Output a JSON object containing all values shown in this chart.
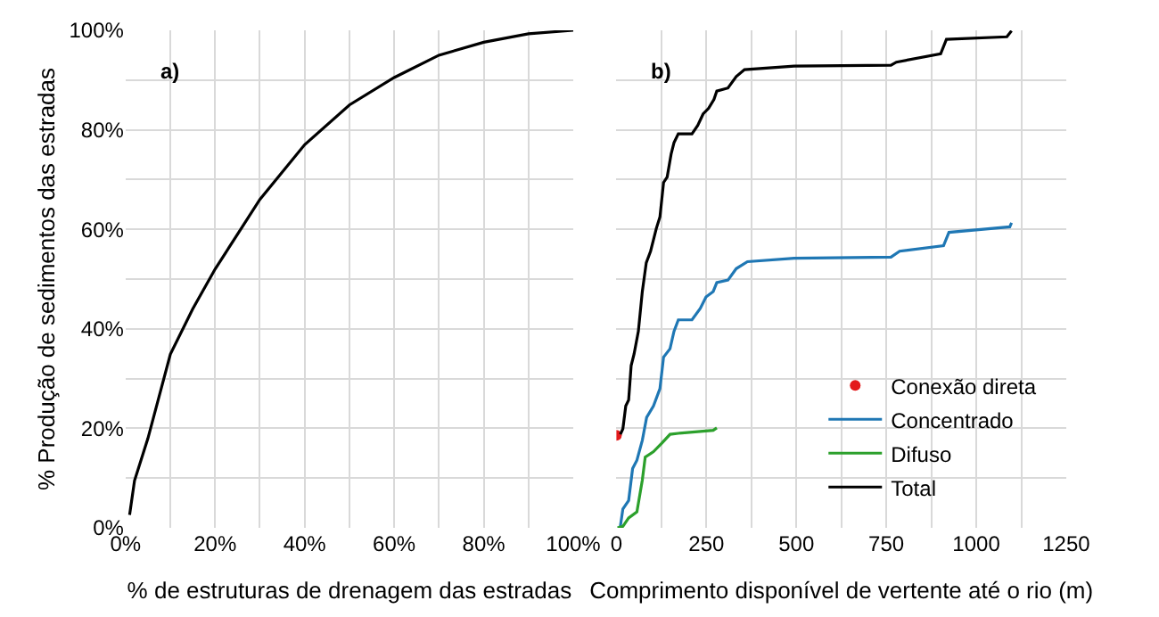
{
  "chart_data": [
    {
      "type": "line",
      "xlabel": "% de estruturas de drenagem das estradas",
      "ylabel": "% Produção de sedimentos das estradas",
      "annotations": [
        "a)"
      ],
      "x": [
        0.9,
        2,
        5,
        10,
        15,
        20,
        30,
        40,
        50,
        60,
        70,
        80,
        90,
        100
      ],
      "series": [
        {
          "color": "#000000",
          "values": [
            2.6,
            9.5,
            18,
            34.9,
            44,
            52,
            66,
            77,
            85,
            90.5,
            95,
            97.6,
            99.3,
            100
          ]
        }
      ],
      "xlim": [
        0,
        100
      ],
      "ylim": [
        0,
        100
      ],
      "xticks": [
        {
          "value": 0,
          "label": "0%"
        },
        {
          "value": 10,
          "label": null
        },
        {
          "value": 20,
          "label": "20%"
        },
        {
          "value": 30,
          "label": null
        },
        {
          "value": 40,
          "label": "40%"
        },
        {
          "value": 50,
          "label": null
        },
        {
          "value": 60,
          "label": "60%"
        },
        {
          "value": 70,
          "label": null
        },
        {
          "value": 80,
          "label": "80%"
        },
        {
          "value": 90,
          "label": null
        },
        {
          "value": 100,
          "label": "100%"
        }
      ],
      "yticks": [
        {
          "value": 0,
          "label": "0%"
        },
        {
          "value": 10,
          "label": null
        },
        {
          "value": 20,
          "label": "20%"
        },
        {
          "value": 30,
          "label": null
        },
        {
          "value": 40,
          "label": "40%"
        },
        {
          "value": 50,
          "label": null
        },
        {
          "value": 60,
          "label": "60%"
        },
        {
          "value": 70,
          "label": null
        },
        {
          "value": 80,
          "label": "80%"
        },
        {
          "value": 90,
          "label": null
        },
        {
          "value": 100,
          "label": "100%"
        }
      ],
      "grid": true,
      "legend": false
    },
    {
      "type": "line",
      "xlabel": "Comprimento disponível de vertente até o rio (m)",
      "annotations": [
        "b)"
      ],
      "series": [
        {
          "name": "Conexão direta",
          "type": "scatter",
          "marker": "circle",
          "color": "#e31a1c",
          "x": [
            0
          ],
          "values": [
            18.6
          ]
        },
        {
          "name": "Concentrado",
          "color": "#1f77b4",
          "x": [
            11,
            18,
            34,
            45,
            57,
            72,
            84,
            103,
            121,
            131,
            149,
            160,
            172,
            210,
            233,
            249,
            269,
            279,
            310,
            333,
            364,
            494,
            763,
            787,
            909,
            924,
            1093,
            1098
          ],
          "values": [
            0.3,
            3.8,
            5.5,
            11.9,
            13.6,
            17.6,
            22.2,
            24.5,
            28,
            34.3,
            36,
            39.5,
            41.8,
            41.8,
            44.1,
            46.4,
            47.5,
            49.3,
            49.8,
            52.1,
            53.5,
            54.2,
            54.4,
            55.6,
            56.7,
            59.4,
            60.5,
            61.3
          ]
        },
        {
          "name": "Difuso",
          "color": "#2ca02c",
          "x": [
            3,
            18,
            34,
            57,
            72,
            80,
            103,
            126,
            149,
            172,
            269,
            279
          ],
          "values": [
            0,
            0.3,
            2,
            3.2,
            9.6,
            14.2,
            15.3,
            17,
            18.8,
            19,
            19.6,
            20.1
          ]
        },
        {
          "name": "Total",
          "color": "#000000",
          "x": [
            11,
            18,
            26,
            34,
            41,
            49,
            61,
            72,
            83,
            95,
            111,
            121,
            131,
            141,
            152,
            160,
            172,
            210,
            226,
            241,
            256,
            271,
            279,
            310,
            333,
            356,
            494,
            763,
            778,
            901,
            917,
            1085,
            1098
          ],
          "values": [
            18.8,
            19.9,
            24.5,
            25.7,
            32.6,
            34.9,
            39.5,
            47.5,
            53.3,
            55.6,
            60.2,
            62.5,
            69.4,
            70.5,
            75.1,
            77.4,
            79.2,
            79.2,
            80.9,
            83.2,
            84.3,
            86.1,
            87.8,
            88.4,
            90.7,
            92.1,
            92.8,
            93.0,
            93.6,
            95.3,
            98.2,
            98.7,
            99.9
          ]
        }
      ],
      "xlim": [
        0,
        1250
      ],
      "ylim": [
        0,
        100
      ],
      "xticks": [
        0,
        {
          "value": 125,
          "label": null
        },
        250,
        {
          "value": 375,
          "label": null
        },
        500,
        {
          "value": 625,
          "label": null
        },
        750,
        {
          "value": 875,
          "label": null
        },
        1000,
        {
          "value": 1125,
          "label": null
        },
        1250
      ],
      "yticks": [
        {
          "value": 0,
          "label": null
        },
        {
          "value": 10,
          "label": null
        },
        {
          "value": 20,
          "label": null
        },
        {
          "value": 30,
          "label": null
        },
        {
          "value": 40,
          "label": null
        },
        {
          "value": 50,
          "label": null
        },
        {
          "value": 60,
          "label": null
        },
        {
          "value": 70,
          "label": null
        },
        {
          "value": 80,
          "label": null
        },
        {
          "value": 90,
          "label": null
        },
        {
          "value": 100,
          "label": null
        }
      ],
      "tick_labels": "x",
      "grid": true,
      "legend": "bottom right"
    }
  ]
}
